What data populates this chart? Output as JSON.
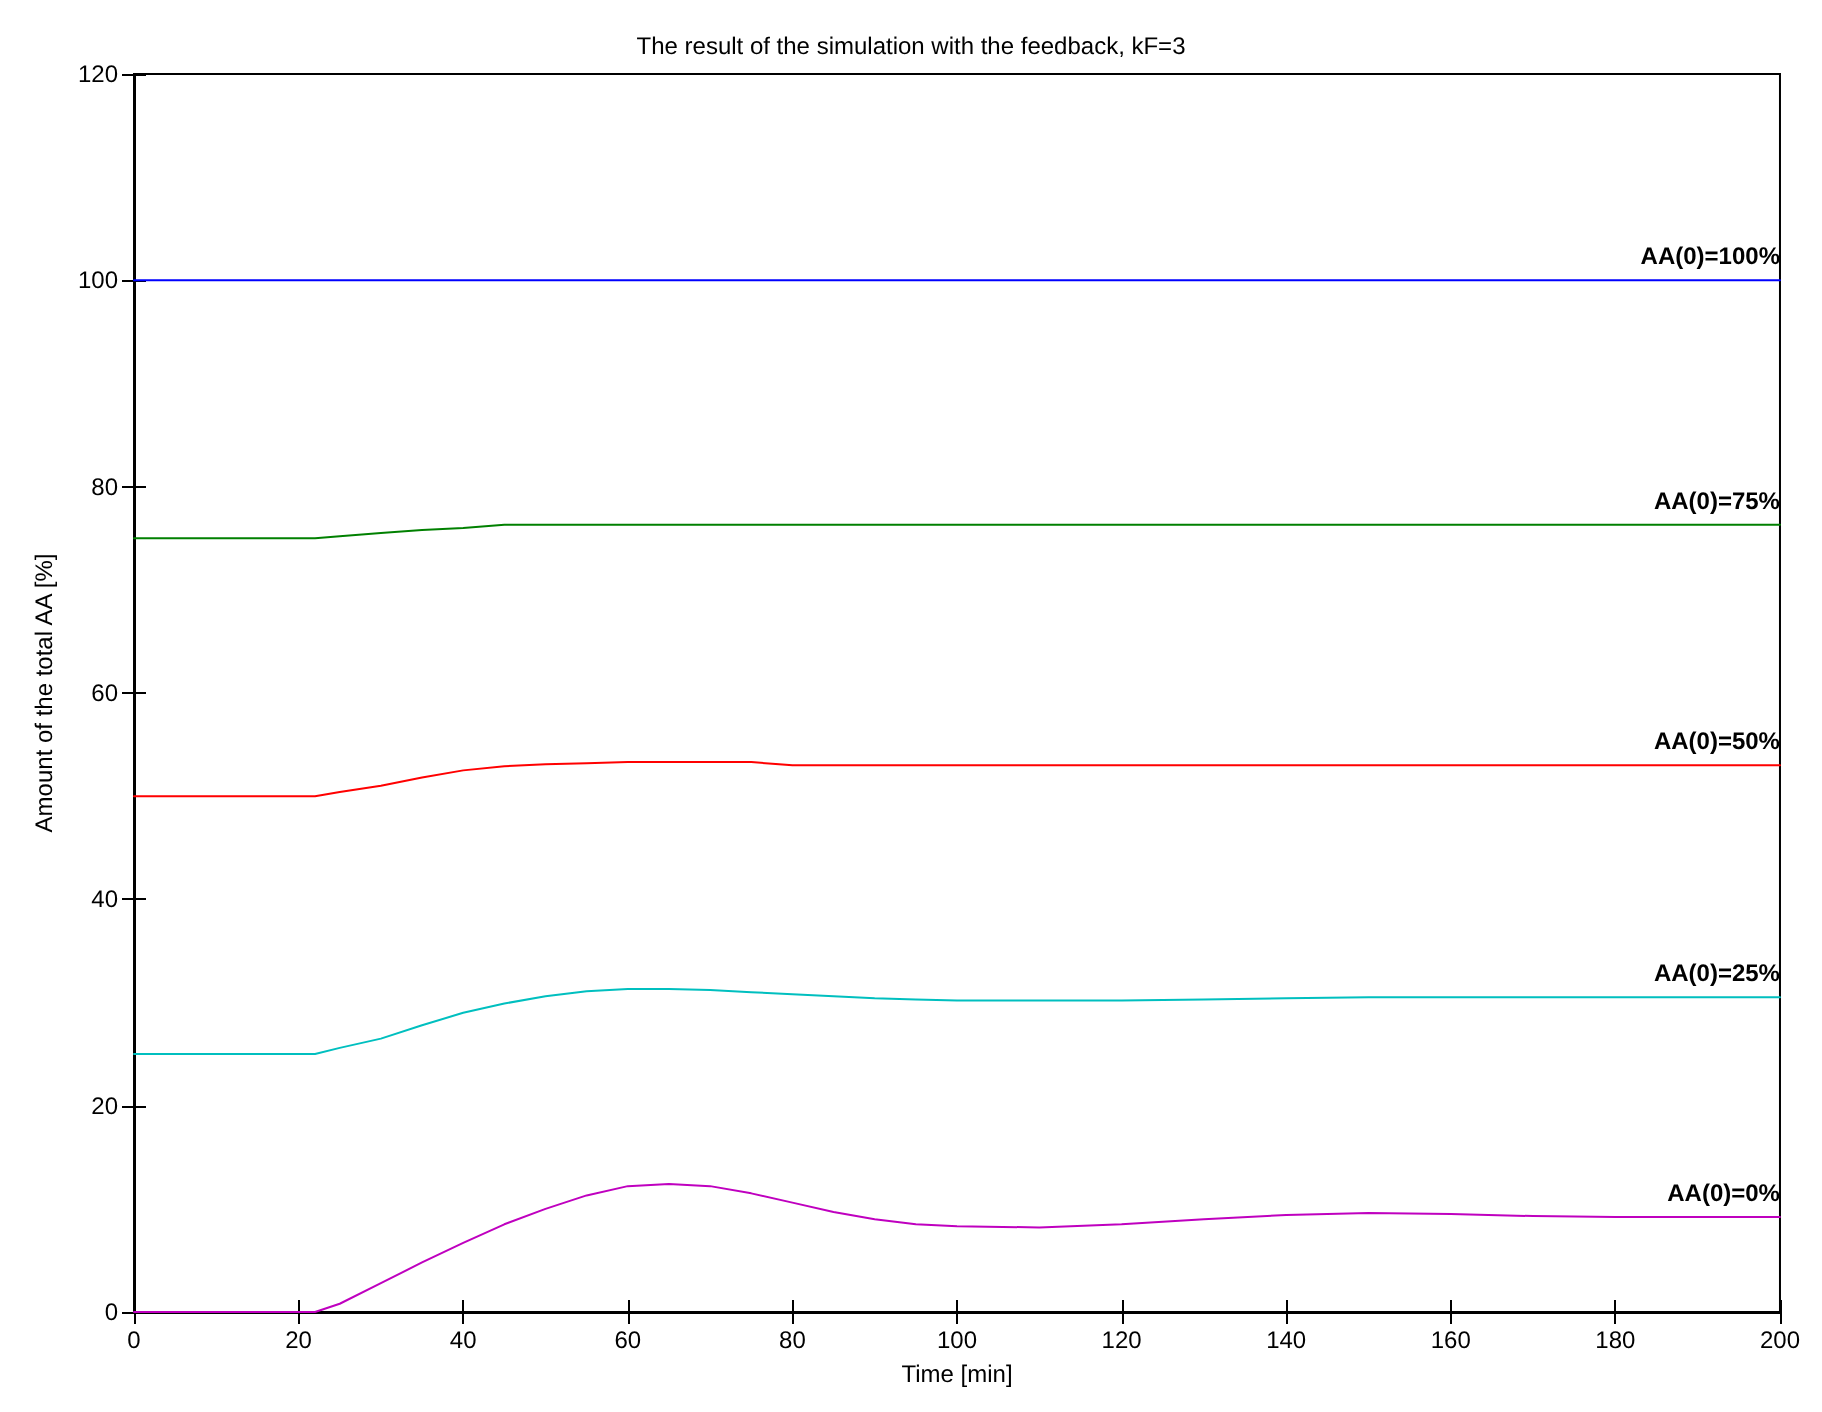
{
  "chart_data": {
    "type": "line",
    "title": "The result of the simulation with the feedback, kF=3",
    "xlabel": "Time [min]",
    "ylabel": "Amount of the total AA [%]",
    "x": [
      0,
      10,
      20,
      22,
      25,
      30,
      35,
      40,
      45,
      50,
      55,
      60,
      65,
      70,
      75,
      80,
      85,
      90,
      95,
      100,
      110,
      120,
      130,
      140,
      150,
      160,
      170,
      180,
      190,
      200
    ],
    "series": [
      {
        "name": "AA(0)=100%",
        "color": "#0000ff",
        "values": [
          100,
          100,
          100,
          100,
          100,
          100,
          100,
          100,
          100,
          100,
          100,
          100,
          100,
          100,
          100,
          100,
          100,
          100,
          100,
          100,
          100,
          100,
          100,
          100,
          100,
          100,
          100,
          100,
          100,
          100
        ]
      },
      {
        "name": "AA(0)=75%",
        "color": "#008000",
        "values": [
          75,
          75,
          75,
          75,
          75.2,
          75.5,
          75.8,
          76,
          76.3,
          76.3,
          76.3,
          76.3,
          76.3,
          76.3,
          76.3,
          76.3,
          76.3,
          76.3,
          76.3,
          76.3,
          76.3,
          76.3,
          76.3,
          76.3,
          76.3,
          76.3,
          76.3,
          76.3,
          76.3,
          76.3
        ]
      },
      {
        "name": "AA(0)=50%",
        "color": "#ff0000",
        "values": [
          50,
          50,
          50,
          50,
          50.4,
          51,
          51.8,
          52.5,
          52.9,
          53.1,
          53.2,
          53.3,
          53.3,
          53.3,
          53.3,
          53,
          53,
          53,
          53,
          53,
          53,
          53,
          53,
          53,
          53,
          53,
          53,
          53,
          53,
          53
        ]
      },
      {
        "name": "AA(0)=25%",
        "color": "#00bfbf",
        "values": [
          25,
          25,
          25,
          25,
          25.6,
          26.5,
          27.8,
          29,
          29.9,
          30.6,
          31.1,
          31.3,
          31.3,
          31.2,
          31,
          30.8,
          30.6,
          30.4,
          30.3,
          30.2,
          30.2,
          30.2,
          30.3,
          30.4,
          30.5,
          30.5,
          30.5,
          30.5,
          30.5,
          30.5
        ]
      },
      {
        "name": "AA(0)=0%",
        "color": "#bf00bf",
        "values": [
          0,
          0,
          0,
          0,
          0.8,
          2.8,
          4.8,
          6.7,
          8.5,
          10,
          11.3,
          12.2,
          12.4,
          12.2,
          11.5,
          10.6,
          9.7,
          9,
          8.5,
          8.3,
          8.2,
          8.5,
          9,
          9.4,
          9.6,
          9.5,
          9.3,
          9.2,
          9.2,
          9.2
        ]
      }
    ],
    "xlim": [
      0,
      200
    ],
    "xticks": [
      0,
      20,
      40,
      60,
      80,
      100,
      120,
      140,
      160,
      180,
      200
    ],
    "ylim": [
      0,
      120
    ],
    "yticks": [
      0,
      20,
      40,
      60,
      80,
      100,
      120
    ],
    "grid": false,
    "legend": false,
    "marker": "none",
    "line_style": "solid"
  }
}
